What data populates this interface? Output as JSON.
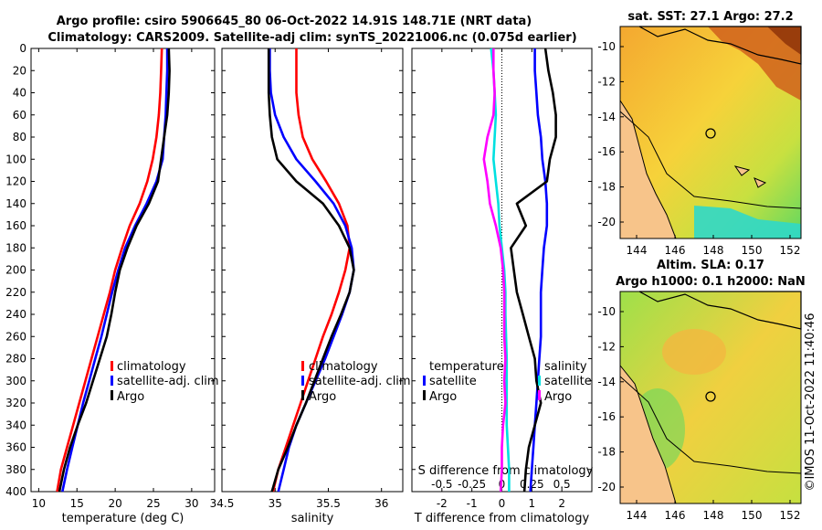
{
  "title": {
    "line1": "Argo profile: csiro 5906645_80 06-Oct-2022 14.91S 148.71E (NRT data)",
    "line2": "Climatology: CARS2009. Satellite-adj clim: synTS_20221006.nc (0.075d earlier)"
  },
  "copyright": "©IMOS 11-Oct-2022 11:40:46",
  "colors": {
    "climatology": "#ff0000",
    "satellite": "#0000ff",
    "argo": "#000000",
    "s_diff_sat": "#00e0e0",
    "s_diff_argo": "#ff00ff"
  },
  "chart_data": [
    {
      "type": "line",
      "id": "temperature",
      "xlabel": "temperature (deg C)",
      "xlim": [
        9,
        33
      ],
      "ylim": [
        0,
        400
      ],
      "xticks": [
        "10",
        "15",
        "20",
        "25",
        "30"
      ],
      "xtick_values": [
        10,
        15,
        20,
        25,
        30
      ],
      "yticks": [
        "0",
        "20",
        "40",
        "60",
        "80",
        "100",
        "120",
        "140",
        "160",
        "180",
        "200",
        "220",
        "240",
        "260",
        "280",
        "300",
        "320",
        "340",
        "360",
        "380",
        "400"
      ],
      "legend": [
        "climatology",
        "satellite-adj. clim",
        "Argo"
      ],
      "depth": [
        0,
        20,
        40,
        60,
        80,
        100,
        120,
        140,
        160,
        180,
        200,
        220,
        240,
        260,
        280,
        300,
        320,
        340,
        360,
        380,
        400
      ],
      "series": [
        {
          "name": "climatology",
          "values": [
            26.1,
            26.0,
            25.9,
            25.7,
            25.4,
            24.9,
            24.2,
            23.2,
            21.9,
            20.9,
            20.0,
            19.3,
            18.5,
            17.7,
            16.9,
            16.1,
            15.3,
            14.5,
            13.7,
            12.9,
            12.4
          ]
        },
        {
          "name": "satellite-adj. clim",
          "values": [
            26.8,
            26.8,
            26.7,
            26.6,
            26.4,
            26.2,
            25.4,
            24.1,
            22.6,
            21.3,
            20.4,
            19.6,
            18.9,
            18.2,
            17.4,
            16.6,
            15.8,
            15.1,
            14.4,
            13.7,
            13.1
          ]
        },
        {
          "name": "Argo",
          "values": [
            27.0,
            27.1,
            27.0,
            26.8,
            26.4,
            26.0,
            25.6,
            24.4,
            22.8,
            21.6,
            20.6,
            20.0,
            19.5,
            18.9,
            18.0,
            17.1,
            16.2,
            15.1,
            14.1,
            13.3,
            12.7
          ]
        }
      ]
    },
    {
      "type": "line",
      "id": "salinity",
      "xlabel": "salinity",
      "xlim": [
        34.5,
        36.2
      ],
      "ylim": [
        0,
        400
      ],
      "xticks": [
        "34.5",
        "35",
        "35.5",
        "36"
      ],
      "xtick_values": [
        34.5,
        35,
        35.5,
        36
      ],
      "legend": [
        "climatology",
        "satellite-adj. clim",
        "Argo"
      ],
      "depth": [
        0,
        20,
        40,
        60,
        80,
        100,
        120,
        140,
        160,
        180,
        200,
        220,
        240,
        260,
        280,
        300,
        320,
        340,
        360,
        380,
        400
      ],
      "series": [
        {
          "name": "climatology",
          "values": [
            35.2,
            35.2,
            35.2,
            35.22,
            35.26,
            35.35,
            35.48,
            35.6,
            35.68,
            35.7,
            35.66,
            35.6,
            35.53,
            35.45,
            35.38,
            35.31,
            35.24,
            35.17,
            35.1,
            35.03,
            34.98
          ]
        },
        {
          "name": "satellite-adj. clim",
          "values": [
            34.95,
            34.95,
            34.96,
            35.0,
            35.08,
            35.2,
            35.38,
            35.55,
            35.66,
            35.72,
            35.74,
            35.7,
            35.63,
            35.55,
            35.47,
            35.38,
            35.29,
            35.2,
            35.13,
            35.08,
            35.03
          ]
        },
        {
          "name": "Argo",
          "values": [
            34.94,
            34.94,
            34.94,
            34.95,
            34.97,
            35.02,
            35.2,
            35.45,
            35.6,
            35.7,
            35.74,
            35.7,
            35.62,
            35.53,
            35.45,
            35.37,
            35.29,
            35.2,
            35.12,
            35.03,
            34.97
          ]
        }
      ]
    },
    {
      "type": "line",
      "id": "difference",
      "xlabel": "T difference from climatology",
      "xlabel_top": "S difference from climatology",
      "xlim": [
        -3,
        3
      ],
      "ylim": [
        0,
        400
      ],
      "xticks": [
        "-2",
        "-1",
        "0",
        "1",
        "2"
      ],
      "xtick_values": [
        -2,
        -1,
        0,
        1,
        2
      ],
      "xticks_top": [
        "-0.5",
        "-0.25",
        "0",
        "0.25",
        "0.5"
      ],
      "xtick_top_values": [
        -0.5,
        -0.25,
        0,
        0.25,
        0.5
      ],
      "s_scale": 4,
      "legend_temperature": [
        "temperature",
        "satellite",
        "Argo"
      ],
      "legend_salinity": [
        "salinity",
        "satellite",
        "Argo"
      ],
      "depth": [
        0,
        20,
        40,
        60,
        80,
        100,
        120,
        140,
        160,
        180,
        200,
        220,
        240,
        260,
        280,
        300,
        320,
        340,
        360,
        380,
        400
      ],
      "series": [
        {
          "name": "T satellite",
          "values": [
            1.1,
            1.1,
            1.15,
            1.2,
            1.3,
            1.35,
            1.45,
            1.5,
            1.5,
            1.4,
            1.35,
            1.3,
            1.3,
            1.3,
            1.25,
            1.2,
            1.15,
            1.1,
            1.05,
            1.0,
            0.95
          ]
        },
        {
          "name": "T Argo",
          "values": [
            1.45,
            1.55,
            1.7,
            1.8,
            1.8,
            1.6,
            1.5,
            0.5,
            0.8,
            0.3,
            0.4,
            0.5,
            0.7,
            0.9,
            1.1,
            1.15,
            1.3,
            1.1,
            0.9,
            0.8,
            0.75
          ]
        },
        {
          "name": "S satellite",
          "values": [
            -0.09,
            -0.07,
            -0.06,
            -0.05,
            -0.06,
            -0.07,
            -0.05,
            -0.03,
            -0.02,
            0.0,
            0.02,
            0.03,
            0.03,
            0.035,
            0.04,
            0.04,
            0.04,
            0.04,
            0.05,
            0.06,
            0.06
          ]
        },
        {
          "name": "S Argo",
          "values": [
            -0.07,
            -0.07,
            -0.06,
            -0.07,
            -0.12,
            -0.15,
            -0.12,
            -0.1,
            -0.05,
            -0.01,
            0.01,
            0.02,
            0.02,
            0.02,
            0.03,
            0.02,
            0.03,
            0.01,
            0.0,
            0.0,
            -0.01
          ]
        }
      ]
    }
  ],
  "maps": {
    "sst": {
      "title": "sat. SST: 27.1 Argo: 27.2",
      "xticks": [
        "144",
        "146",
        "148",
        "150",
        "152"
      ],
      "yticks": [
        "-10",
        "-12",
        "-14",
        "-16",
        "-18",
        "-20"
      ]
    },
    "sla": {
      "title_line1": "Altim. SLA: 0.17",
      "title_line2": "Argo h1000: 0.1 h2000: NaN",
      "xticks": [
        "144",
        "146",
        "148",
        "150",
        "152"
      ],
      "yticks": [
        "-10",
        "-12",
        "-14",
        "-16",
        "-18",
        "-20"
      ]
    }
  }
}
